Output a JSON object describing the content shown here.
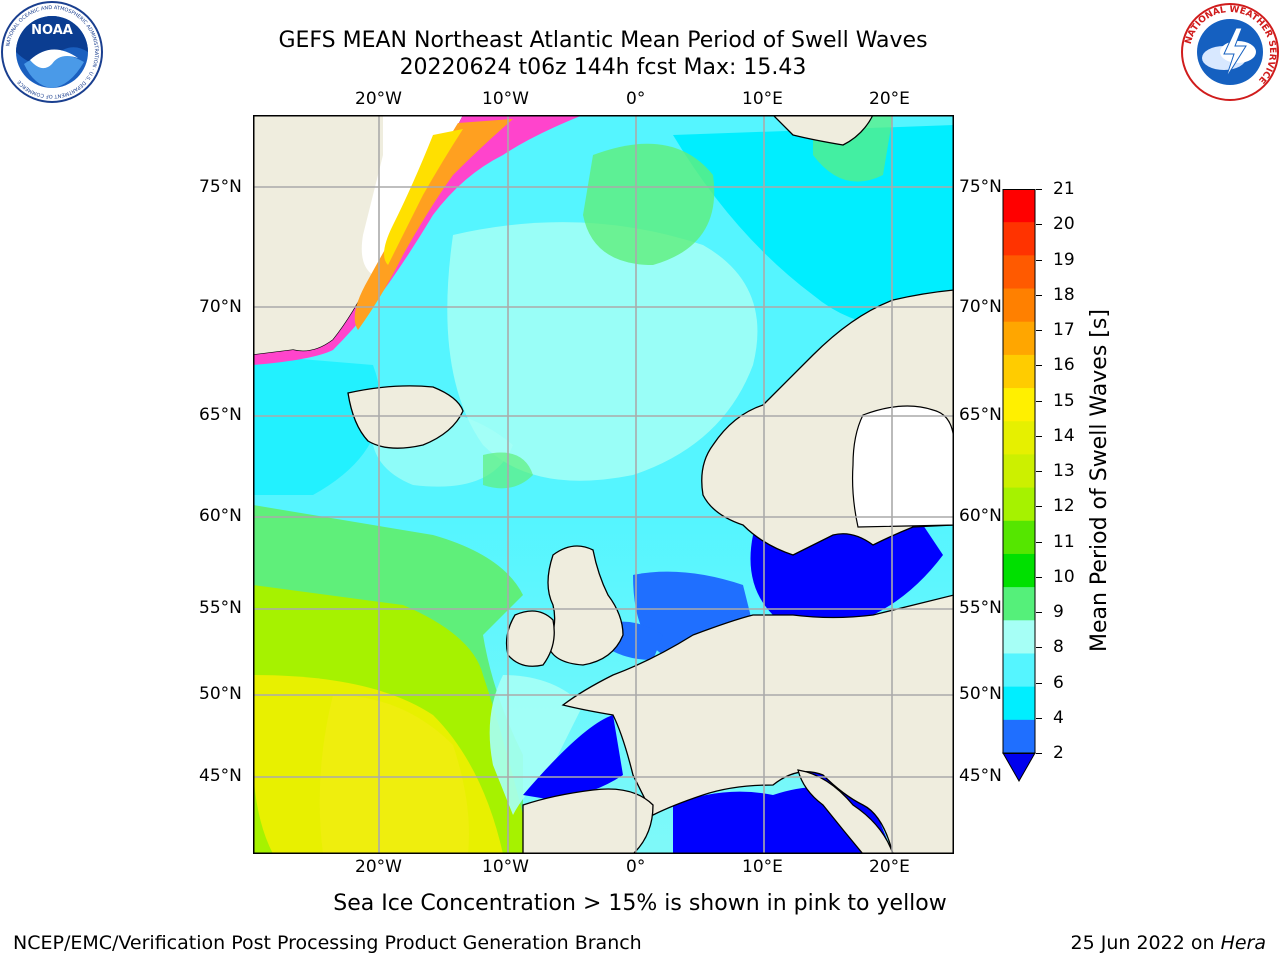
{
  "header": {
    "title_line1": "GEFS MEAN Northeast Atlantic Mean Period of Swell Waves",
    "title_line2": "20220624 t06z 144h fcst   Max: 15.43"
  },
  "logos": {
    "left": "noaa-logo",
    "left_text": "NOAA",
    "left_ring_text": "NATIONAL OCEANIC AND ATMOSPHERIC ADMINISTRATION · U.S. DEPARTMENT OF COMMERCE",
    "right": "nws-logo",
    "right_ring_text": "NATIONAL WEATHER SERVICE"
  },
  "map": {
    "lon_labels": [
      "20°W",
      "10°W",
      "0°",
      "10°E",
      "20°E"
    ],
    "lat_labels": [
      "75°N",
      "70°N",
      "65°N",
      "60°N",
      "55°N",
      "50°N",
      "45°N"
    ],
    "colors": {
      "ocean_deep_blue": "#0000ff",
      "ocean_blue": "#1f6fff",
      "ocean_cyan": "#00eeff",
      "ocean_light_cyan": "#55f5ff",
      "ocean_pale": "#a6fff6",
      "ocean_green": "#5fef7a",
      "ocean_lime": "#a6f200",
      "ocean_yellow": "#e8f000",
      "land": "#efedde",
      "ice_pink": "#ff44cc",
      "ice_yellow": "#ffe000"
    }
  },
  "colorbar": {
    "label": "Mean Period of Swell Waves [s]",
    "ticks": [
      "21",
      "20",
      "19",
      "18",
      "17",
      "16",
      "15",
      "14",
      "13",
      "12",
      "11",
      "10",
      "9",
      "8",
      "6",
      "4",
      "2"
    ],
    "colors": [
      "#ff0000",
      "#ff3300",
      "#ff5a00",
      "#ff8000",
      "#ffa600",
      "#ffcc00",
      "#fff000",
      "#e6f000",
      "#ccf000",
      "#a6f200",
      "#55e600",
      "#00e000",
      "#55f07a",
      "#a6fff6",
      "#55f5ff",
      "#00eeff",
      "#1f6fff"
    ],
    "extend_color": "#0000ee"
  },
  "caption": "Sea Ice Concentration > 15% is shown in pink to yellow",
  "footer": {
    "left": "NCEP/EMC/Verification Post Processing Product Generation Branch",
    "right_date": "25 Jun 2022 on",
    "right_host": "Hera"
  }
}
